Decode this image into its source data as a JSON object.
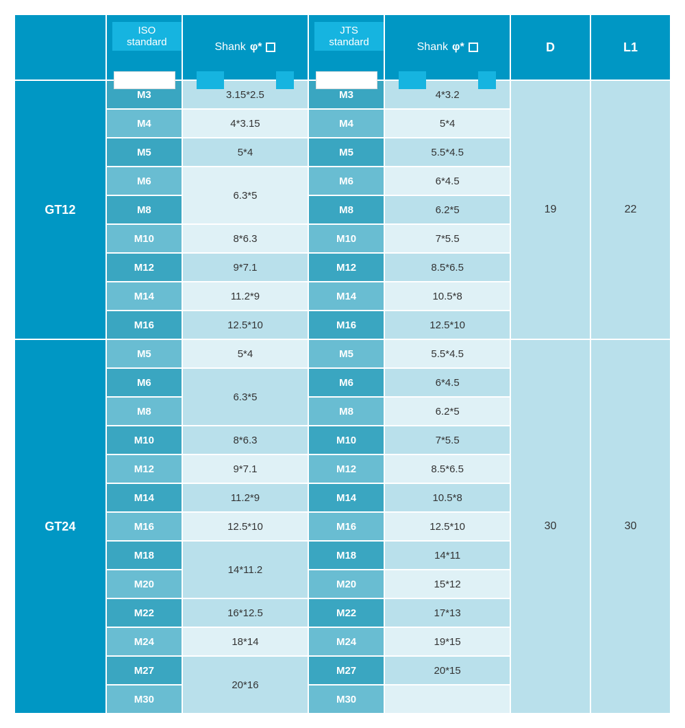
{
  "header": {
    "iso_label": "ISO standard",
    "jts_label": "JTS standard",
    "shank_label": "Shank",
    "phi": "φ*",
    "d_label": "D",
    "l1_label": "L1"
  },
  "colors": {
    "header_bg": "#0097c4",
    "header_text": "#ffffff",
    "span_bg": "#5fc2da",
    "size_dark": "#3aa6c1",
    "size_light": "#69bdd2",
    "val_dark": "#b9e0eb",
    "val_light": "#dff1f6",
    "label_tab": "#16b4e0",
    "border": "#ffffff"
  },
  "groups": [
    {
      "name": "GT12",
      "d": "19",
      "l1": "22",
      "rows": [
        {
          "size": "M3",
          "iso": "3.15*2.5",
          "jts": "4*3.2",
          "iso_rowspan": 1,
          "shade": "dark"
        },
        {
          "size": "M4",
          "iso": "4*3.15",
          "jts": "5*4",
          "iso_rowspan": 1,
          "shade": "light"
        },
        {
          "size": "M5",
          "iso": "5*4",
          "jts": "5.5*4.5",
          "iso_rowspan": 1,
          "shade": "dark"
        },
        {
          "size": "M6",
          "iso": "6.3*5",
          "jts": "6*4.5",
          "iso_rowspan": 2,
          "shade": "light"
        },
        {
          "size": "M8",
          "iso": null,
          "jts": "6.2*5",
          "iso_rowspan": 0,
          "shade": "dark"
        },
        {
          "size": "M10",
          "iso": "8*6.3",
          "jts": "7*5.5",
          "iso_rowspan": 1,
          "shade": "light"
        },
        {
          "size": "M12",
          "iso": "9*7.1",
          "jts": "8.5*6.5",
          "iso_rowspan": 1,
          "shade": "dark"
        },
        {
          "size": "M14",
          "iso": "11.2*9",
          "jts": "10.5*8",
          "iso_rowspan": 1,
          "shade": "light"
        },
        {
          "size": "M16",
          "iso": "12.5*10",
          "jts": "12.5*10",
          "iso_rowspan": 1,
          "shade": "dark"
        }
      ]
    },
    {
      "name": "GT24",
      "d": "30",
      "l1": "30",
      "rows": [
        {
          "size": "M5",
          "iso": "5*4",
          "jts": "5.5*4.5",
          "iso_rowspan": 1,
          "shade": "light"
        },
        {
          "size": "M6",
          "iso": "6.3*5",
          "jts": "6*4.5",
          "iso_rowspan": 2,
          "shade": "dark"
        },
        {
          "size": "M8",
          "iso": null,
          "jts": "6.2*5",
          "iso_rowspan": 0,
          "shade": "light"
        },
        {
          "size": "M10",
          "iso": "8*6.3",
          "jts": "7*5.5",
          "iso_rowspan": 1,
          "shade": "dark"
        },
        {
          "size": "M12",
          "iso": "9*7.1",
          "jts": "8.5*6.5",
          "iso_rowspan": 1,
          "shade": "light"
        },
        {
          "size": "M14",
          "iso": "11.2*9",
          "jts": "10.5*8",
          "iso_rowspan": 1,
          "shade": "dark"
        },
        {
          "size": "M16",
          "iso": "12.5*10",
          "jts": "12.5*10",
          "iso_rowspan": 1,
          "shade": "light"
        },
        {
          "size": "M18",
          "iso": "14*11.2",
          "jts": "14*11",
          "iso_rowspan": 2,
          "shade": "dark"
        },
        {
          "size": "M20",
          "iso": null,
          "jts": "15*12",
          "iso_rowspan": 0,
          "shade": "light"
        },
        {
          "size": "M22",
          "iso": "16*12.5",
          "jts": "17*13",
          "iso_rowspan": 1,
          "shade": "dark"
        },
        {
          "size": "M24",
          "iso": "18*14",
          "jts": "19*15",
          "iso_rowspan": 1,
          "shade": "light"
        },
        {
          "size": "M27",
          "iso": "20*16",
          "jts": "20*15",
          "iso_rowspan": 2,
          "shade": "dark"
        },
        {
          "size": "M30",
          "iso": null,
          "jts": "",
          "iso_rowspan": 0,
          "shade": "light"
        }
      ]
    }
  ]
}
